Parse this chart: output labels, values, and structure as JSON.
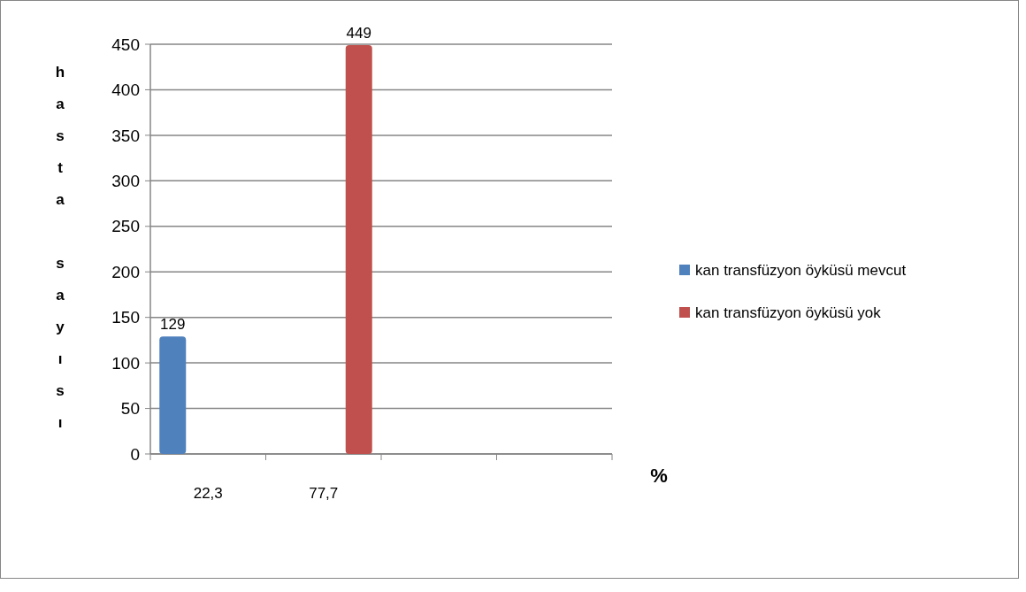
{
  "chart_data": {
    "type": "bar",
    "categories": [
      "22,3",
      "77,7",
      null,
      null
    ],
    "series": [
      {
        "name": "kan transfüzyon öyküsü mevcut",
        "color": "#4f81bd",
        "values": [
          129,
          null,
          null,
          null
        ]
      },
      {
        "name": "kan transfüzyon öyküsü yok",
        "color": "#c0504d",
        "values": [
          null,
          449,
          null,
          null
        ]
      }
    ],
    "ylabel": "hasta sayısı",
    "xlabel": "%",
    "ylim": [
      0,
      450
    ],
    "yticks": [
      0,
      50,
      100,
      150,
      200,
      250,
      300,
      350,
      400,
      450
    ],
    "grid": "y",
    "legend": "right",
    "data_labels": true
  }
}
